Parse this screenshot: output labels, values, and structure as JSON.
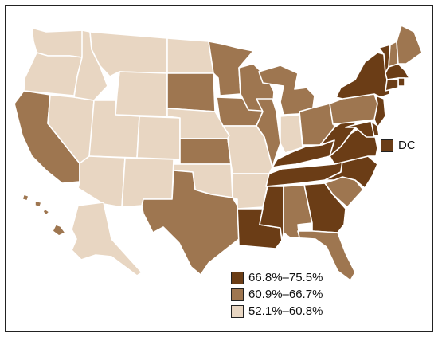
{
  "colors": {
    "high": "#6b3d16",
    "mid": "#9e7650",
    "low": "#e8d6c2"
  },
  "legend": [
    {
      "label": "66.8%–75.5%",
      "tier": "high"
    },
    {
      "label": "60.9%–66.7%",
      "tier": "mid"
    },
    {
      "label": "52.1%–60.8%",
      "tier": "low"
    }
  ],
  "dc": {
    "label": "DC",
    "tier": "high"
  },
  "states": {
    "WA": "low",
    "OR": "low",
    "CA": "mid",
    "NV": "low",
    "ID": "low",
    "MT": "low",
    "WY": "low",
    "UT": "low",
    "AZ": "low",
    "CO": "low",
    "NM": "low",
    "ND": "low",
    "SD": "mid",
    "NE": "low",
    "KS": "mid",
    "OK": "low",
    "TX": "mid",
    "MN": "mid",
    "IA": "mid",
    "MO": "low",
    "AR": "low",
    "LA": "high",
    "WI": "mid",
    "IL": "mid",
    "MI": "mid",
    "IN": "low",
    "OH": "mid",
    "KY": "high",
    "TN": "high",
    "MS": "high",
    "AL": "mid",
    "GA": "high",
    "FL": "mid",
    "SC": "mid",
    "NC": "high",
    "VA": "high",
    "WV": "high",
    "PA": "mid",
    "NY": "high",
    "VT": "high",
    "NH": "mid",
    "ME": "mid",
    "MA": "high",
    "RI": "high",
    "CT": "high",
    "NJ": "high",
    "DE": "high",
    "MD": "high",
    "AK": "low",
    "HI": "mid"
  }
}
